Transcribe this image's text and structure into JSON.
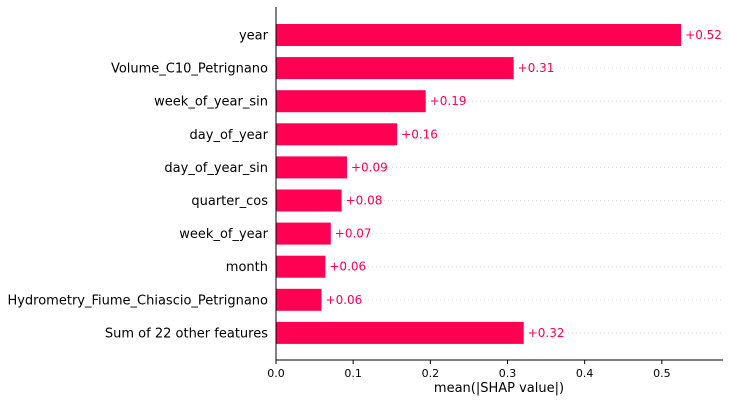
{
  "chart_data": {
    "type": "bar",
    "orientation": "horizontal",
    "categories": [
      "year",
      "Volume_C10_Petrignano",
      "week_of_year_sin",
      "day_of_year",
      "day_of_year_sin",
      "quarter_cos",
      "week_of_year",
      "month",
      "Hydrometry_Fiume_Chiascio_Petrignano",
      "Sum of 22 other features"
    ],
    "values": [
      0.525,
      0.308,
      0.194,
      0.157,
      0.092,
      0.085,
      0.071,
      0.064,
      0.059,
      0.321
    ],
    "value_labels": [
      "+0.52",
      "+0.31",
      "+0.19",
      "+0.16",
      "+0.09",
      "+0.08",
      "+0.07",
      "+0.06",
      "+0.06",
      "+0.32"
    ],
    "xticks": [
      0.0,
      0.1,
      0.2,
      0.3,
      0.4,
      0.5
    ],
    "xtick_labels": [
      "0.0",
      "0.1",
      "0.2",
      "0.3",
      "0.4",
      "0.5"
    ],
    "xlim": [
      0,
      0.58
    ],
    "xlabel": "mean(|SHAP value|)",
    "ylabel": "",
    "title": "",
    "grid": "dotted horizontal guide lines per row",
    "colors": {
      "bar": "#ff0052",
      "value_label": "#ff0052",
      "axis": "#000000",
      "grid": "#dddddd"
    }
  }
}
